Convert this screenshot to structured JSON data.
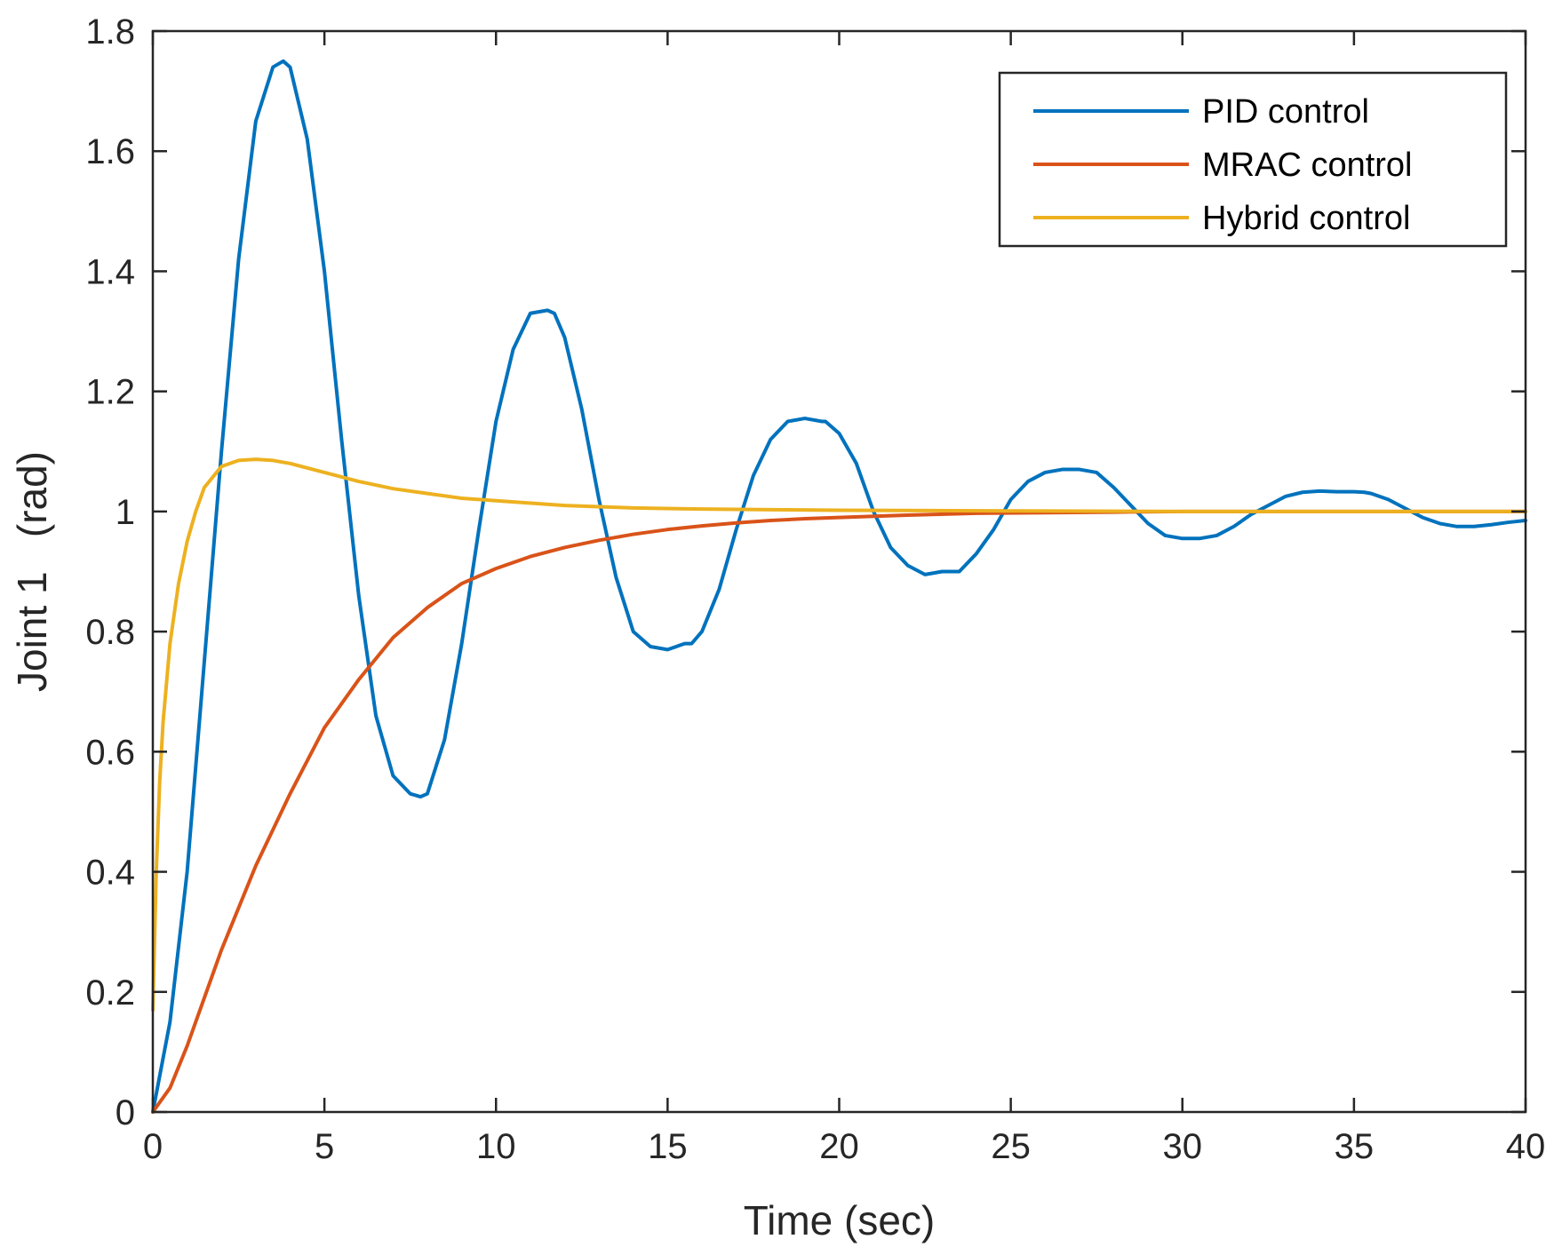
{
  "chart_data": {
    "type": "line",
    "title": "",
    "xlabel": "Time (sec)",
    "ylabel": "Joint 1   (rad)",
    "xlim": [
      0,
      40
    ],
    "ylim": [
      0,
      1.8
    ],
    "xticks": [
      0,
      5,
      10,
      15,
      20,
      25,
      30,
      35,
      40
    ],
    "xtick_labels": [
      "0",
      "5",
      "10",
      "15",
      "20",
      "25",
      "30",
      "35",
      "40"
    ],
    "yticks": [
      0,
      0.2,
      0.4,
      0.6,
      0.8,
      1,
      1.2,
      1.4,
      1.6,
      1.8
    ],
    "ytick_labels": [
      "0",
      "0.2",
      "0.4",
      "0.6",
      "0.8",
      "1",
      "1.2",
      "1.4",
      "1.6",
      "1.8"
    ],
    "grid": false,
    "legend_position": "top-right",
    "series": [
      {
        "name": "PID control",
        "color": "#0072BD",
        "x": [
          0,
          0.5,
          1,
          1.5,
          2,
          2.5,
          3,
          3.5,
          3.8,
          4,
          4.5,
          5,
          5.5,
          6,
          6.5,
          7,
          7.5,
          7.8,
          8,
          8.5,
          9,
          9.5,
          10,
          10.5,
          11,
          11.5,
          11.7,
          12,
          12.5,
          13,
          13.5,
          14,
          14.5,
          15,
          15.5,
          15.7,
          16,
          16.5,
          17,
          17.5,
          18,
          18.5,
          19,
          19.5,
          19.6,
          20,
          20.5,
          21,
          21.5,
          22,
          22.5,
          23,
          23.5,
          24,
          24.5,
          25,
          25.5,
          26,
          26.5,
          27,
          27.5,
          28,
          28.5,
          29,
          29.5,
          30,
          30.5,
          31,
          31.5,
          32,
          32.5,
          33,
          33.5,
          34,
          34.5,
          35,
          35.3,
          35.5,
          36,
          36.5,
          37,
          37.5,
          38,
          38.5,
          39,
          39.5,
          40
        ],
        "y": [
          0,
          0.15,
          0.4,
          0.75,
          1.1,
          1.42,
          1.65,
          1.74,
          1.75,
          1.74,
          1.62,
          1.4,
          1.12,
          0.86,
          0.66,
          0.56,
          0.53,
          0.525,
          0.53,
          0.62,
          0.78,
          0.97,
          1.15,
          1.27,
          1.33,
          1.335,
          1.33,
          1.29,
          1.17,
          1.02,
          0.89,
          0.8,
          0.775,
          0.77,
          0.78,
          0.78,
          0.8,
          0.87,
          0.97,
          1.06,
          1.12,
          1.15,
          1.155,
          1.15,
          1.15,
          1.13,
          1.08,
          1.0,
          0.94,
          0.91,
          0.895,
          0.9,
          0.9,
          0.93,
          0.97,
          1.02,
          1.05,
          1.065,
          1.07,
          1.07,
          1.065,
          1.04,
          1.01,
          0.98,
          0.96,
          0.955,
          0.955,
          0.96,
          0.975,
          0.995,
          1.01,
          1.025,
          1.032,
          1.034,
          1.033,
          1.033,
          1.032,
          1.03,
          1.02,
          1.005,
          0.99,
          0.98,
          0.975,
          0.975,
          0.978,
          0.982,
          0.985
        ]
      },
      {
        "name": "MRAC control",
        "color": "#D95319",
        "x": [
          0,
          0.5,
          1,
          1.5,
          2,
          3,
          4,
          5,
          6,
          7,
          8,
          9,
          10,
          11,
          12,
          13,
          14,
          15,
          16,
          17,
          18,
          19,
          20,
          22,
          24,
          26,
          28,
          30,
          32,
          34,
          36,
          38,
          40
        ],
        "y": [
          0,
          0.04,
          0.11,
          0.19,
          0.27,
          0.41,
          0.53,
          0.64,
          0.72,
          0.79,
          0.84,
          0.88,
          0.905,
          0.925,
          0.94,
          0.952,
          0.962,
          0.97,
          0.976,
          0.981,
          0.985,
          0.988,
          0.99,
          0.994,
          0.997,
          0.998,
          0.999,
          1.0,
          1.0,
          1.0,
          1.0,
          1.0,
          1.0
        ]
      },
      {
        "name": "Hybrid control",
        "color": "#EDB120",
        "x": [
          0,
          0.1,
          0.2,
          0.3,
          0.5,
          0.75,
          1,
          1.25,
          1.5,
          2,
          2.5,
          3,
          3.5,
          4,
          5,
          6,
          7,
          8,
          9,
          10,
          12,
          14,
          16,
          18,
          20,
          25,
          30,
          35,
          40
        ],
        "y": [
          0.17,
          0.4,
          0.55,
          0.65,
          0.78,
          0.88,
          0.95,
          1.0,
          1.04,
          1.075,
          1.085,
          1.087,
          1.085,
          1.08,
          1.065,
          1.05,
          1.038,
          1.03,
          1.022,
          1.018,
          1.01,
          1.006,
          1.004,
          1.003,
          1.002,
          1.001,
          1.0,
          1.0,
          1.0
        ]
      }
    ]
  }
}
